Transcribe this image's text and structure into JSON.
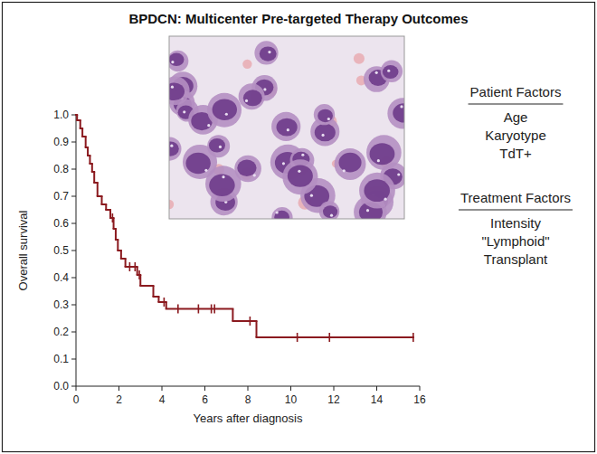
{
  "chart_data": {
    "type": "step",
    "title": "BPDCN: Multicenter Pre-targeted Therapy Outcomes",
    "x_label": "Years after diagnosis",
    "y_label": "Overall survival",
    "x": [
      0,
      0.05,
      0.2,
      0.3,
      0.45,
      0.55,
      0.65,
      0.75,
      0.85,
      1.0,
      1.2,
      1.4,
      1.6,
      1.75,
      1.85,
      1.95,
      2.1,
      2.3,
      2.85,
      3.0,
      3.6,
      3.85,
      4.2,
      7.3,
      8.4,
      15.7
    ],
    "values": [
      1.0,
      0.98,
      0.95,
      0.92,
      0.88,
      0.85,
      0.82,
      0.79,
      0.75,
      0.7,
      0.67,
      0.65,
      0.62,
      0.58,
      0.54,
      0.5,
      0.47,
      0.44,
      0.41,
      0.37,
      0.33,
      0.31,
      0.285,
      0.24,
      0.18,
      0.18
    ],
    "censor_x": [
      1.7,
      2.5,
      2.75,
      2.95,
      4.1,
      4.75,
      5.7,
      6.3,
      6.45,
      8.1,
      10.3,
      11.8,
      15.7
    ],
    "censor_values": [
      0.62,
      0.44,
      0.44,
      0.41,
      0.31,
      0.285,
      0.285,
      0.285,
      0.285,
      0.24,
      0.18,
      0.18,
      0.18
    ],
    "color": "#8b1a1f",
    "marker": "tick",
    "xlim": [
      0,
      16
    ],
    "xticks": [
      0,
      2,
      4,
      6,
      8,
      10,
      12,
      14,
      16
    ],
    "ylim": [
      0,
      1
    ],
    "yticks": [
      {
        "value": 0,
        "label": "0.0"
      },
      {
        "value": 0.1,
        "label": "0.1"
      },
      {
        "value": 0.2,
        "label": "0.2"
      },
      {
        "value": 0.3,
        "label": "0.3"
      },
      {
        "value": 0.4,
        "label": "0.4"
      },
      {
        "value": 0.5,
        "label": "0.5"
      },
      {
        "value": 0.6,
        "label": "0.6"
      },
      {
        "value": 0.7,
        "label": "0.7"
      },
      {
        "value": 0.8,
        "label": "0.8"
      },
      {
        "value": 0.9,
        "label": "0.9"
      },
      {
        "value": 1,
        "label": "1.0"
      }
    ],
    "grid": false,
    "factor_groups": [
      {
        "heading": "Patient Factors",
        "items": [
          "Age",
          "Karyotype",
          "TdT+"
        ]
      },
      {
        "heading": "Treatment Factors",
        "items": [
          "Intensity",
          "\"Lymphoid\"",
          "Transplant"
        ]
      }
    ]
  }
}
